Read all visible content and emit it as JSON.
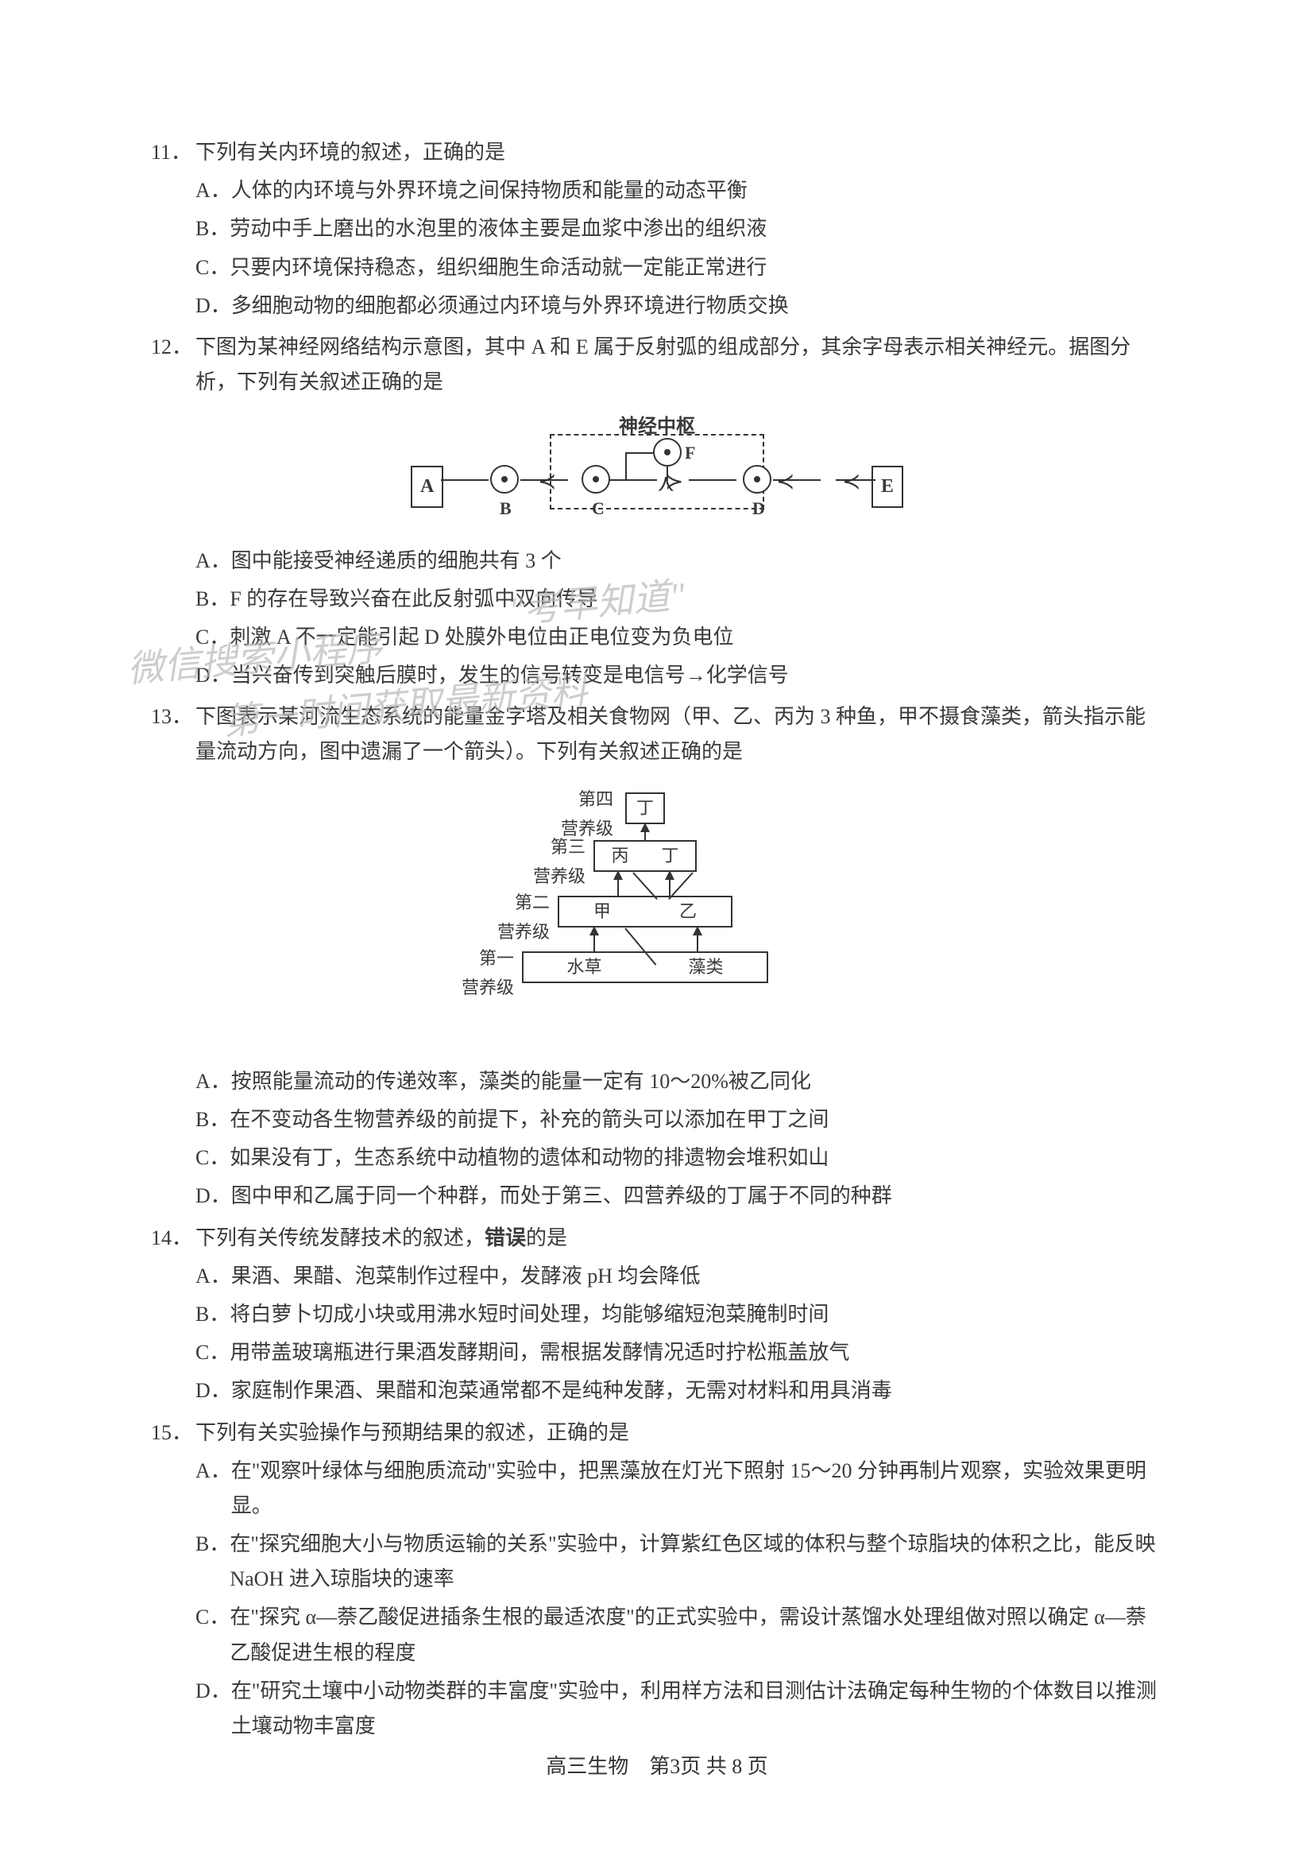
{
  "questions": [
    {
      "num": "11．",
      "stem": "下列有关内环境的叙述，正确的是",
      "options": [
        {
          "label": "A．",
          "text": "人体的内环境与外界环境之间保持物质和能量的动态平衡"
        },
        {
          "label": "B．",
          "text": "劳动中手上磨出的水泡里的液体主要是血浆中渗出的组织液"
        },
        {
          "label": "C．",
          "text": "只要内环境保持稳态，组织细胞生命活动就一定能正常进行"
        },
        {
          "label": "D．",
          "text": "多细胞动物的细胞都必须通过内环境与外界环境进行物质交换"
        }
      ]
    },
    {
      "num": "12．",
      "stem": "下图为某神经网络结构示意图，其中 A 和 E 属于反射弧的组成部分，其余字母表示相关神经元。据图分析，下列有关叙述正确的是",
      "diagram": "neural",
      "options": [
        {
          "label": "A．",
          "text": "图中能接受神经递质的细胞共有 3 个"
        },
        {
          "label": "B．",
          "text": "F 的存在导致兴奋在此反射弧中双向传导"
        },
        {
          "label": "C．",
          "text": "刺激 A 不一定能引起 D 处膜外电位由正电位变为负电位"
        },
        {
          "label": "D．",
          "text": "当兴奋传到突触后膜时，发生的信号转变是电信号→化学信号"
        }
      ]
    },
    {
      "num": "13．",
      "stem": "下图表示某河流生态系统的能量金字塔及相关食物网（甲、乙、丙为 3 种鱼，甲不摄食藻类，箭头指示能量流动方向，图中遗漏了一个箭头）。下列有关叙述正确的是",
      "diagram": "pyramid",
      "options": [
        {
          "label": "A．",
          "text": "按照能量流动的传递效率，藻类的能量一定有 10～20%被乙同化"
        },
        {
          "label": "B．",
          "text": "在不变动各生物营养级的前提下，补充的箭头可以添加在甲丁之间"
        },
        {
          "label": "C．",
          "text": "如果没有丁，生态系统中动植物的遗体和动物的排遗物会堆积如山"
        },
        {
          "label": "D．",
          "text": "图中甲和乙属于同一个种群，而处于第三、四营养级的丁属于不同的种群"
        }
      ]
    },
    {
      "num": "14．",
      "stem": "下列有关传统发酵技术的叙述，<span class=\"bold\">错误</span>的是",
      "options": [
        {
          "label": "A．",
          "text": "果酒、果醋、泡菜制作过程中，发酵液 pH 均会降低"
        },
        {
          "label": "B．",
          "text": "将白萝卜切成小块或用沸水短时间处理，均能够缩短泡菜腌制时间"
        },
        {
          "label": "C．",
          "text": "用带盖玻璃瓶进行果酒发酵期间，需根据发酵情况适时拧松瓶盖放气"
        },
        {
          "label": "D．",
          "text": "家庭制作果酒、果醋和泡菜通常都不是纯种发酵，无需对材料和用具消毒"
        }
      ]
    },
    {
      "num": "15．",
      "stem": "下列有关实验操作与预期结果的叙述，正确的是",
      "options": [
        {
          "label": "A．",
          "text": "在\"观察叶绿体与细胞质流动\"实验中，把黑藻放在灯光下照射 15～20 分钟再制片观察，实验效果更明显。"
        },
        {
          "label": "B．",
          "text": "在\"探究细胞大小与物质运输的关系\"实验中，计算紫红色区域的体积与整个琼脂块的体积之比，能反映 NaOH 进入琼脂块的速率"
        },
        {
          "label": "C．",
          "text": "在\"探究 α—萘乙酸促进插条生根的最适浓度\"的正式实验中，需设计蒸馏水处理组做对照以确定 α—萘乙酸促进生根的程度"
        },
        {
          "label": "D．",
          "text": "在\"研究土壤中小动物类群的丰富度\"实验中，利用样方法和目测估计法确定每种生物的个体数目以推测土壤动物丰富度"
        }
      ]
    }
  ],
  "neural_diagram": {
    "title": "神经中枢",
    "nodes": {
      "A": "A",
      "B": "B",
      "C": "C",
      "D": "D",
      "E": "E",
      "F": "F"
    }
  },
  "pyramid_diagram": {
    "levels": [
      {
        "label": "第四\n营养级",
        "species": [
          "丁"
        ]
      },
      {
        "label": "第三\n营养级",
        "species": [
          "丙",
          "丁"
        ]
      },
      {
        "label": "第二\n营养级",
        "species": [
          "甲",
          "乙"
        ]
      },
      {
        "label": "第一\n营养级",
        "species": [
          "水草",
          "藻类"
        ]
      }
    ]
  },
  "watermarks": [
    "微信搜索小程序",
    "\"考早知道\"",
    "第一时间获取最新资料"
  ],
  "footer": {
    "subject": "高三生物",
    "page": "第3页  共 8 页"
  },
  "colors": {
    "text": "#3a3a3a",
    "watermark": "#b8b8b8",
    "diagram_line": "#333333",
    "background": "#ffffff"
  }
}
